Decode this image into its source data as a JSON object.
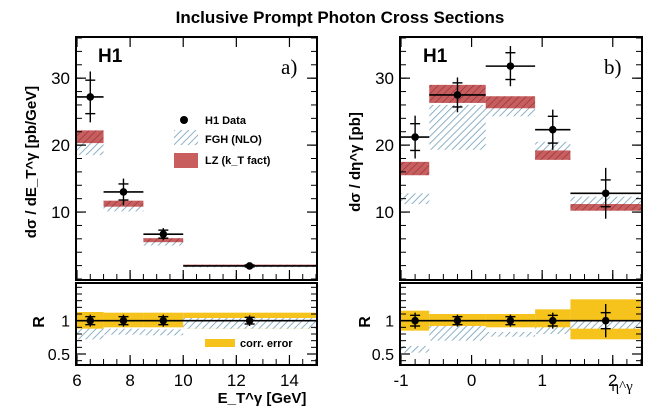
{
  "title": "Inclusive Prompt Photon Cross Sections",
  "colors": {
    "lz_fill": "#c85e5e",
    "lz_hatch": "#8a2e3c",
    "fgh_fill": "#ffffff",
    "fgh_hatch": "#7fa8c0",
    "corr_error": "#f5c31c",
    "data": "#000000"
  },
  "chart_data": [
    {
      "id": "a",
      "type": "scatter",
      "panel_label": "a)",
      "h1_label": "H1",
      "ylabel": "dσ / dE_T^γ [pb/GeV]",
      "xlim": [
        6,
        15
      ],
      "ylim": [
        0,
        36
      ],
      "yticks": [
        10,
        20,
        30
      ],
      "legend": {
        "position": "center-right",
        "entries": [
          "H1 Data",
          "FGH (NLO)",
          "LZ (k_T fact)"
        ]
      },
      "bins": [
        [
          6,
          7
        ],
        [
          7,
          8.5
        ],
        [
          8.5,
          10
        ],
        [
          10,
          15
        ]
      ],
      "data": {
        "name": "H1 Data",
        "x": [
          6.5,
          7.75,
          9.25,
          12.5
        ],
        "y": [
          27.2,
          13.0,
          6.7,
          1.95
        ],
        "err_inner": [
          2.5,
          1.2,
          0.6,
          0.15
        ],
        "err_total": [
          3.8,
          2.0,
          0.9,
          0.25
        ]
      },
      "fgh": {
        "name": "FGH (NLO)",
        "low": [
          18.5,
          10.1,
          5.0,
          1.75
        ],
        "high": [
          20.3,
          11.0,
          5.6,
          2.05
        ]
      },
      "lz": {
        "name": "LZ (k_T fact)",
        "low": [
          20.3,
          10.8,
          5.5,
          1.9
        ],
        "high": [
          22.2,
          11.7,
          6.1,
          2.15
        ]
      }
    },
    {
      "id": "b",
      "type": "scatter",
      "panel_label": "b)",
      "h1_label": "H1",
      "ylabel": "dσ / dη^γ [pb]",
      "xlim": [
        -1,
        2.4
      ],
      "ylim": [
        0,
        36
      ],
      "yticks": [
        10,
        20,
        30
      ],
      "bins": [
        [
          -1,
          -0.6
        ],
        [
          -0.6,
          0.2
        ],
        [
          0.2,
          0.9
        ],
        [
          0.9,
          1.4
        ],
        [
          1.4,
          2.4
        ]
      ],
      "data": {
        "name": "H1 Data",
        "x": [
          -0.8,
          -0.2,
          0.55,
          1.15,
          1.9
        ],
        "y": [
          21.2,
          27.5,
          31.8,
          22.3,
          12.8
        ],
        "err_inner": [
          2.0,
          1.8,
          2.0,
          2.0,
          2.0
        ],
        "err_total": [
          3.2,
          2.6,
          3.0,
          3.0,
          3.8
        ]
      },
      "fgh": {
        "name": "FGH (NLO)",
        "low": [
          11.2,
          19.3,
          24.3,
          17.8,
          11.2
        ],
        "high": [
          12.8,
          26.0,
          25.8,
          20.5,
          12.3
        ]
      },
      "lz": {
        "name": "LZ (k_T fact)",
        "low": [
          15.5,
          26.3,
          25.5,
          17.8,
          10.2
        ],
        "high": [
          17.5,
          29.0,
          27.3,
          19.2,
          11.2
        ]
      }
    },
    {
      "id": "ra",
      "type": "scatter",
      "ylabel": "R",
      "xlabel": "E_T^γ [GeV]",
      "xlim": [
        6,
        15
      ],
      "ylim": [
        0.35,
        1.55
      ],
      "yticks": [
        0.5,
        1
      ],
      "xticks": [
        6,
        8,
        10,
        12,
        14
      ],
      "legend": {
        "position": "bottom-right",
        "entries": [
          "corr. error"
        ]
      },
      "bins": [
        [
          6,
          7
        ],
        [
          7,
          8.5
        ],
        [
          8.5,
          10
        ],
        [
          10,
          15
        ]
      ],
      "corr_error": {
        "name": "corr. error",
        "low": [
          0.87,
          0.9,
          0.9,
          0.88
        ],
        "high": [
          1.13,
          1.12,
          1.12,
          1.12
        ]
      },
      "fgh": {
        "low": [
          0.72,
          0.79,
          0.78,
          0.88
        ],
        "high": [
          0.88,
          0.88,
          0.87,
          1.04
        ]
      },
      "data": {
        "x": [
          6.5,
          7.75,
          9.25,
          12.5
        ],
        "y": [
          1.0,
          1.0,
          1.0,
          1.0
        ],
        "err_inner": [
          0.06,
          0.06,
          0.06,
          0.05
        ],
        "err_total": [
          0.09,
          0.09,
          0.09,
          0.08
        ]
      }
    },
    {
      "id": "rb",
      "type": "scatter",
      "ylabel": "R",
      "xlabel": "η^γ",
      "xlim": [
        -1,
        2.4
      ],
      "ylim": [
        0.35,
        1.55
      ],
      "yticks": [
        0.5,
        1
      ],
      "xticks": [
        -1,
        0,
        1,
        2
      ],
      "bins": [
        [
          -1,
          -0.6
        ],
        [
          -0.6,
          0.2
        ],
        [
          0.2,
          0.9
        ],
        [
          0.9,
          1.4
        ],
        [
          1.4,
          2.4
        ]
      ],
      "corr_error": {
        "low": [
          0.85,
          0.9,
          0.9,
          0.85,
          0.72
        ],
        "high": [
          1.15,
          1.1,
          1.1,
          1.17,
          1.32
        ]
      },
      "fgh": {
        "low": [
          0.52,
          0.7,
          0.76,
          0.8,
          0.88
        ],
        "high": [
          0.62,
          0.92,
          0.83,
          0.9,
          1.0
        ]
      },
      "data": {
        "x": [
          -0.8,
          -0.2,
          0.55,
          1.15,
          1.9
        ],
        "y": [
          1.0,
          1.0,
          1.0,
          1.0,
          1.0
        ],
        "err_inner": [
          0.08,
          0.06,
          0.06,
          0.08,
          0.12
        ],
        "err_total": [
          0.12,
          0.09,
          0.09,
          0.12,
          0.25
        ]
      }
    }
  ]
}
